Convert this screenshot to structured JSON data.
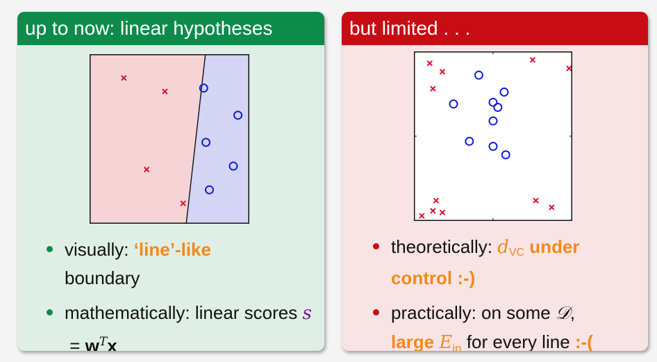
{
  "left": {
    "title": "up to now: linear hypotheses",
    "colors": {
      "header": "#0e8b4a",
      "panel": "#e0efe6",
      "red_region": "#f6d4d6",
      "blue_region": "#d4d4f4",
      "cross": "#d8102c",
      "circle": "#1020d0"
    },
    "plot": {
      "boundary_line": {
        "x1": 0.725,
        "y1": 1.0,
        "x2": 0.605,
        "y2": 0.0
      },
      "crosses": [
        [
          0.3,
          0.86
        ],
        [
          0.66,
          0.78
        ],
        [
          0.5,
          0.32
        ],
        [
          0.82,
          0.12
        ]
      ],
      "circles": [
        [
          1.0,
          0.8
        ],
        [
          1.3,
          0.64
        ],
        [
          1.02,
          0.48
        ],
        [
          1.26,
          0.34
        ],
        [
          1.05,
          0.2
        ]
      ]
    },
    "bullets": [
      {
        "prefix": "visually: ",
        "highlight": "‘line’-like",
        "suffix": "boundary"
      },
      {
        "prefix": "mathematically: linear scores ",
        "math_s": "s",
        "math_eq": " = ",
        "math_w": "w",
        "math_T": "T",
        "math_x": "x"
      }
    ]
  },
  "right": {
    "title": "but limited . . .",
    "colors": {
      "header": "#c70d13",
      "panel": "#f8e4e4"
    },
    "plot": {
      "crosses": [
        [
          0.1,
          0.93
        ],
        [
          0.18,
          0.88
        ],
        [
          0.12,
          0.78
        ],
        [
          0.75,
          0.95
        ],
        [
          0.98,
          0.9
        ],
        [
          0.14,
          0.12
        ],
        [
          0.12,
          0.06
        ],
        [
          0.18,
          0.05
        ],
        [
          0.05,
          0.03
        ],
        [
          0.77,
          0.12
        ],
        [
          0.87,
          0.08
        ]
      ],
      "circles": [
        [
          0.41,
          0.86
        ],
        [
          0.57,
          0.76
        ],
        [
          0.25,
          0.69
        ],
        [
          0.5,
          0.7
        ],
        [
          0.53,
          0.67
        ],
        [
          0.5,
          0.59
        ],
        [
          0.35,
          0.47
        ],
        [
          0.5,
          0.44
        ],
        [
          0.58,
          0.39
        ]
      ]
    },
    "bullets": [
      {
        "prefix": "theoretically: ",
        "math_d": "d",
        "math_vc": "VC",
        "highlight": " under control :-)"
      },
      {
        "prefix": "practically: on some ",
        "math_D": "𝒟",
        "suffix1": ",",
        "highlight1": "large ",
        "math_E": "E",
        "math_in": "in",
        "suffix2": " for every line ",
        "highlight2": ":-("
      }
    ]
  }
}
